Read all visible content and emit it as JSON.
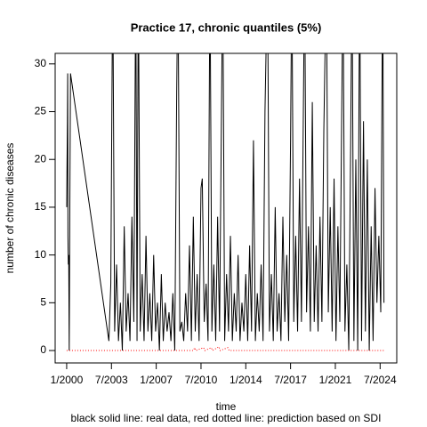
{
  "chart_data": {
    "type": "line",
    "title": "Practice 17, chronic quantiles (5%)",
    "x_label": "time",
    "y_label": "number of chronic diseases",
    "subtitle": "black solid line: real data, red dotted line: prediction based on SDI",
    "xlim": [
      1999.1,
      2025.8
    ],
    "ylim": [
      -1.3,
      31.1
    ],
    "xticks": [
      {
        "value": 2000.0,
        "label": "1/2000"
      },
      {
        "value": 2003.5,
        "label": "7/2003"
      },
      {
        "value": 2007.0,
        "label": "1/2007"
      },
      {
        "value": 2010.5,
        "label": "7/2010"
      },
      {
        "value": 2014.0,
        "label": "1/2014"
      },
      {
        "value": 2017.5,
        "label": "7/2017"
      },
      {
        "value": 2021.0,
        "label": "1/2021"
      },
      {
        "value": 2024.5,
        "label": "7/2024"
      }
    ],
    "yticks": [
      0,
      5,
      10,
      15,
      20,
      25,
      30
    ],
    "series": [
      {
        "color": "#000000",
        "dash": false,
        "x": [
          2000.0,
          2000.03,
          2000.06,
          2000.08,
          2000.1,
          2000.13,
          2000.16,
          2000.2,
          2000.25,
          2000.3,
          2003.3,
          2003.45,
          2003.6,
          2003.75,
          2003.9,
          2004.05,
          2004.2,
          2004.35,
          2004.5,
          2004.65,
          2004.8,
          2004.95,
          2005.1,
          2005.25,
          2005.4,
          2005.5,
          2005.6,
          2005.75,
          2005.9,
          2006.05,
          2006.2,
          2006.35,
          2006.5,
          2006.65,
          2006.8,
          2006.95,
          2007.1,
          2007.25,
          2007.4,
          2007.55,
          2007.7,
          2007.85,
          2008.0,
          2008.15,
          2008.3,
          2008.45,
          2008.6,
          2008.7,
          2008.85,
          2009.0,
          2009.15,
          2009.3,
          2009.45,
          2009.6,
          2009.75,
          2009.9,
          2010.05,
          2010.2,
          2010.35,
          2010.5,
          2010.6,
          2010.75,
          2010.9,
          2011.05,
          2011.2,
          2011.35,
          2011.5,
          2011.65,
          2011.8,
          2011.95,
          2012.1,
          2012.2,
          2012.35,
          2012.5,
          2012.65,
          2012.8,
          2012.95,
          2013.1,
          2013.25,
          2013.4,
          2013.55,
          2013.7,
          2013.85,
          2014.0,
          2014.15,
          2014.3,
          2014.45,
          2014.6,
          2014.75,
          2014.9,
          2015.05,
          2015.2,
          2015.35,
          2015.5,
          2015.7,
          2015.85,
          2016.0,
          2016.15,
          2016.3,
          2016.45,
          2016.6,
          2016.75,
          2016.9,
          2017.05,
          2017.2,
          2017.35,
          2017.5,
          2017.6,
          2017.75,
          2017.9,
          2018.05,
          2018.2,
          2018.35,
          2018.5,
          2018.6,
          2018.75,
          2018.9,
          2019.05,
          2019.2,
          2019.35,
          2019.5,
          2019.65,
          2019.8,
          2019.95,
          2020.1,
          2020.3,
          2020.45,
          2020.6,
          2020.75,
          2020.9,
          2021.05,
          2021.2,
          2021.35,
          2021.5,
          2021.6,
          2021.75,
          2021.9,
          2022.05,
          2022.2,
          2022.3,
          2022.45,
          2022.6,
          2022.75,
          2022.9,
          2023.05,
          2023.2,
          2023.35,
          2023.5,
          2023.65,
          2023.8,
          2023.95,
          2024.1,
          2024.25,
          2024.4,
          2024.55,
          2024.7,
          2024.8
        ],
        "values": [
          15,
          20,
          24,
          29,
          12,
          9,
          10,
          0,
          16,
          29,
          1,
          7,
          40,
          2,
          9,
          1,
          5,
          0,
          13,
          2,
          6,
          1,
          14,
          3,
          40,
          1,
          40,
          2,
          8,
          1,
          12,
          2,
          6,
          1,
          10,
          2,
          5,
          0,
          8,
          1,
          5,
          2,
          4,
          1,
          6,
          0,
          27,
          40,
          2,
          3,
          1,
          6,
          2,
          11,
          1,
          14,
          2,
          8,
          1,
          17,
          18,
          3,
          7,
          1,
          40,
          2,
          9,
          1,
          14,
          2,
          25,
          40,
          1,
          8,
          2,
          12,
          1,
          6,
          2,
          10,
          1,
          5,
          2,
          8,
          1,
          11,
          2,
          22,
          1,
          6,
          2,
          9,
          1,
          25,
          40,
          2,
          8,
          1,
          15,
          2,
          6,
          1,
          14,
          3,
          10,
          1,
          22,
          40,
          3,
          12,
          2,
          18,
          3,
          25,
          40,
          4,
          13,
          2,
          26,
          3,
          11,
          2,
          14,
          3,
          23,
          40,
          4,
          15,
          2,
          18,
          1,
          13,
          3,
          25,
          40,
          2,
          9,
          0,
          22,
          40,
          1,
          20,
          0,
          40,
          1,
          24,
          2,
          20,
          0,
          13,
          1,
          17,
          5,
          12,
          4,
          40,
          5
        ]
      },
      {
        "color": "#ff0000",
        "dash": true,
        "x": [
          2000.0,
          2009.9,
          2010.0,
          2010.1,
          2010.7,
          2010.8,
          2011.3,
          2011.4,
          2011.9,
          2012.0,
          2012.6,
          2012.7,
          2024.8
        ],
        "values": [
          0,
          0,
          0.3,
          0,
          0.3,
          0,
          0.3,
          0,
          0.4,
          0,
          0.3,
          0,
          0
        ]
      }
    ]
  }
}
